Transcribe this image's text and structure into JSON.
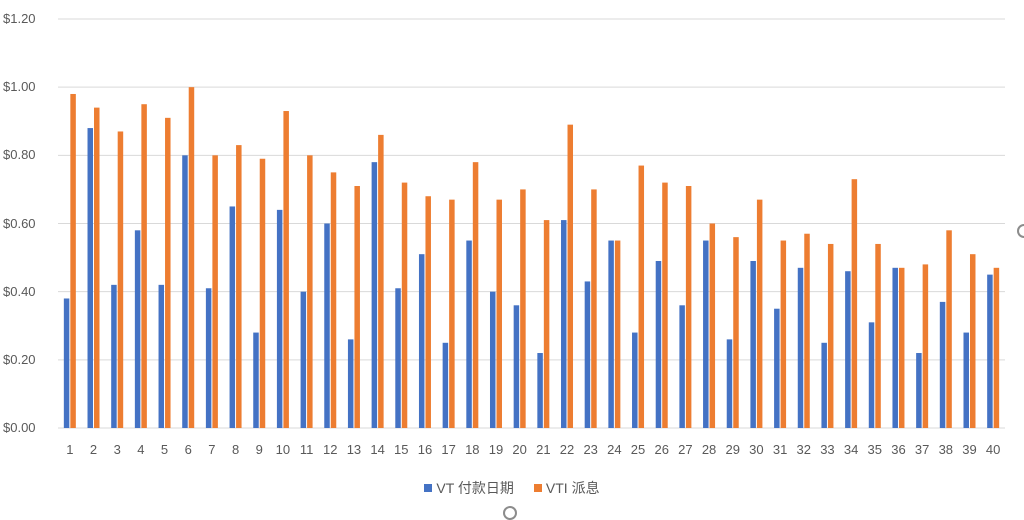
{
  "chart_data": {
    "type": "bar",
    "title": "",
    "xlabel": "",
    "ylabel": "",
    "ylim": [
      0,
      1.2
    ],
    "yticks": [
      "$0.00",
      "$0.20",
      "$0.40",
      "$0.60",
      "$0.80",
      "$1.00",
      "$1.20"
    ],
    "grid": true,
    "legend_position": "bottom",
    "categories": [
      "1",
      "2",
      "3",
      "4",
      "5",
      "6",
      "7",
      "8",
      "9",
      "10",
      "11",
      "12",
      "13",
      "14",
      "15",
      "16",
      "17",
      "18",
      "19",
      "20",
      "21",
      "22",
      "23",
      "24",
      "25",
      "26",
      "27",
      "28",
      "29",
      "30",
      "31",
      "32",
      "33",
      "34",
      "35",
      "36",
      "37",
      "38",
      "39",
      "40"
    ],
    "series": [
      {
        "name": "VT 付款日期",
        "color": "#4472C4",
        "values": [
          0.38,
          0.88,
          0.42,
          0.58,
          0.42,
          0.8,
          0.41,
          0.65,
          0.28,
          0.64,
          0.4,
          0.6,
          0.26,
          0.78,
          0.41,
          0.51,
          0.25,
          0.55,
          0.4,
          0.36,
          0.22,
          0.61,
          0.43,
          0.55,
          0.28,
          0.49,
          0.36,
          0.55,
          0.26,
          0.49,
          0.35,
          0.47,
          0.25,
          0.46,
          0.31,
          0.47,
          0.22,
          0.37,
          0.28,
          0.45
        ]
      },
      {
        "name": "VTI 派息",
        "color": "#ED7D31",
        "values": [
          0.98,
          0.94,
          0.87,
          0.95,
          0.91,
          1.0,
          0.8,
          0.83,
          0.79,
          0.93,
          0.8,
          0.75,
          0.71,
          0.86,
          0.72,
          0.68,
          0.67,
          0.78,
          0.67,
          0.7,
          0.61,
          0.89,
          0.7,
          0.55,
          0.77,
          0.72,
          0.71,
          0.6,
          0.56,
          0.67,
          0.55,
          0.57,
          0.54,
          0.73,
          0.54,
          0.47,
          0.48,
          0.58,
          0.51,
          0.47
        ]
      }
    ]
  },
  "legend": {
    "items": [
      {
        "label": "VT 付款日期",
        "color": "#4472C4"
      },
      {
        "label": "VTI 派息",
        "color": "#ED7D31"
      }
    ]
  }
}
